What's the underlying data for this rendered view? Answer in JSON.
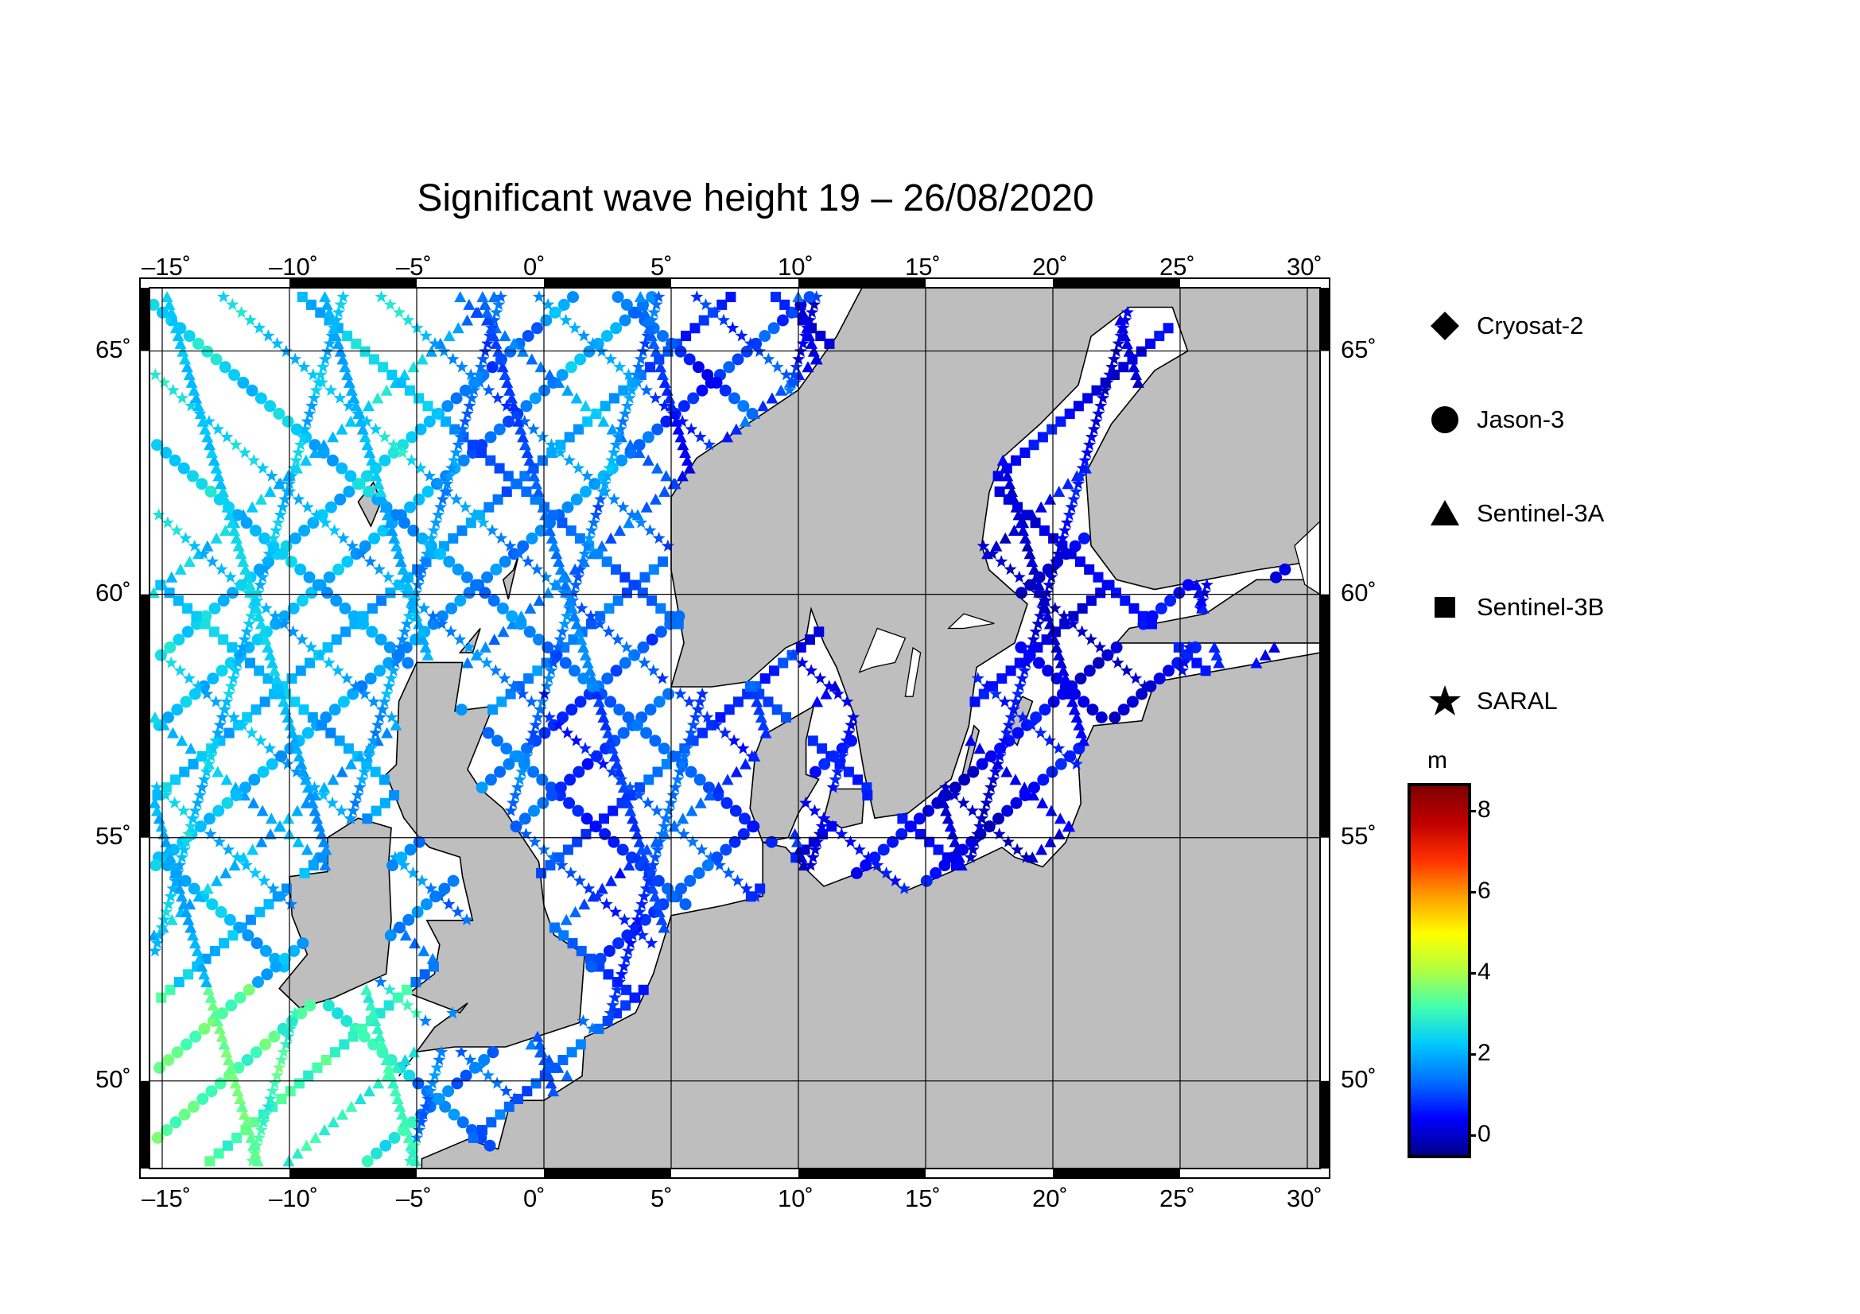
{
  "title": "Significant wave height 19 – 26/08/2020",
  "map": {
    "lon_range": [
      -15.5,
      30.5
    ],
    "lat_range": [
      48.2,
      66.3
    ],
    "lon_ticks": [
      "–15˚",
      "–10˚",
      "–5˚",
      "0˚",
      "5˚",
      "10˚",
      "15˚",
      "20˚",
      "25˚",
      "30˚"
    ],
    "lat_ticks": [
      "65˚",
      "60˚",
      "55˚",
      "50˚"
    ],
    "land_color": "#bebebe",
    "sea_color": "#ffffff",
    "grid": true
  },
  "legend": {
    "items": [
      {
        "label": "Cryosat-2",
        "symbol": "diamond"
      },
      {
        "label": "Jason-3",
        "symbol": "circle"
      },
      {
        "label": "Sentinel-3A",
        "symbol": "triangle"
      },
      {
        "label": "Sentinel-3B",
        "symbol": "square"
      },
      {
        "label": "SARAL",
        "symbol": "star"
      }
    ]
  },
  "colorbar": {
    "unit": "m",
    "range": [
      -0.5,
      8.6
    ],
    "ticks": [
      "8",
      "6",
      "4",
      "2",
      "0"
    ],
    "colors": [
      "#00008b",
      "#0000ff",
      "#0070ff",
      "#00c8ff",
      "#40ffb0",
      "#b0ff40",
      "#ffff00",
      "#ffa000",
      "#ff3000",
      "#c00000",
      "#800000"
    ]
  }
}
